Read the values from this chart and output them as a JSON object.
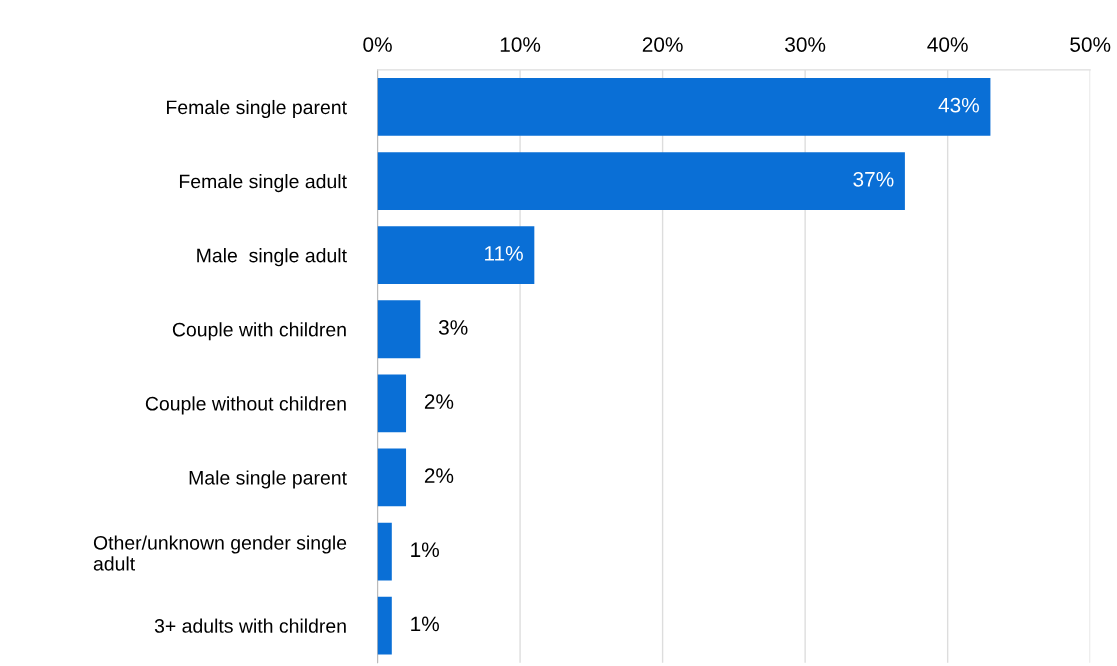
{
  "chart_data": {
    "type": "bar",
    "orientation": "horizontal",
    "categories": [
      "Female single parent",
      "Female single adult",
      "Male  single adult",
      "Couple with children",
      "Couple without children",
      "Male single parent",
      "Other/unknown gender single\nadult",
      "3+ adults with children"
    ],
    "values": [
      43,
      37,
      11,
      3,
      2,
      2,
      1,
      1
    ],
    "value_labels": [
      "43%",
      "37%",
      "11%",
      "3%",
      "2%",
      "2%",
      "1%",
      "1%"
    ],
    "color": "#0a6fd6",
    "xlim": [
      0,
      50
    ],
    "xticks": [
      {
        "value": 0,
        "label": "0%"
      },
      {
        "value": 10,
        "label": "10%"
      },
      {
        "value": 20,
        "label": "20%"
      },
      {
        "value": 30,
        "label": "30%"
      },
      {
        "value": 40,
        "label": "40%"
      },
      {
        "value": 50,
        "label": "50%"
      }
    ],
    "grid": "x"
  }
}
